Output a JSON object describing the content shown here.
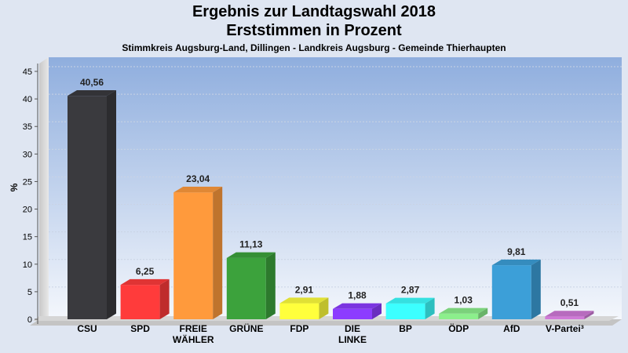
{
  "title": "Ergebnis zur Landtagswahl 2018",
  "title2": "Erststimmen in Prozent",
  "subtitle": "Stimmkreis Augsburg-Land, Dillingen - Landkreis Augsburg - Gemeinde Thierhaupten",
  "chart_data": {
    "type": "bar",
    "title": "Ergebnis zur Landtagswahl 2018",
    "subtitle": "Erststimmen in Prozent",
    "ylabel": "%",
    "ylim": [
      0,
      45
    ],
    "yticks": [
      0,
      5,
      10,
      15,
      20,
      25,
      30,
      35,
      40,
      45
    ],
    "categories": [
      "CSU",
      "SPD",
      "FREIE WÄHLER",
      "GRÜNE",
      "FDP",
      "DIE LINKE",
      "BP",
      "ÖDP",
      "AfD",
      "V-Partei³"
    ],
    "category_lines": [
      [
        "CSU"
      ],
      [
        "SPD"
      ],
      [
        "FREIE",
        "WÄHLER"
      ],
      [
        "GRÜNE"
      ],
      [
        "FDP"
      ],
      [
        "DIE",
        "LINKE"
      ],
      [
        "BP"
      ],
      [
        "ÖDP"
      ],
      [
        "AfD"
      ],
      [
        "V-Partei³"
      ]
    ],
    "values": [
      40.56,
      6.25,
      23.04,
      11.13,
      2.91,
      1.88,
      2.87,
      1.03,
      9.81,
      0.51
    ],
    "value_labels": [
      "40,56",
      "6,25",
      "23,04",
      "11,13",
      "2,91",
      "1,88",
      "2,87",
      "1,03",
      "9,81",
      "0,51"
    ],
    "colors": [
      "#3a3a3e",
      "#ff3b3b",
      "#ff9a3c",
      "#3ca23c",
      "#ffff3c",
      "#8c3cff",
      "#3cffff",
      "#8cef8c",
      "#3c9fd8",
      "#d07ad8"
    ],
    "grid": true
  }
}
